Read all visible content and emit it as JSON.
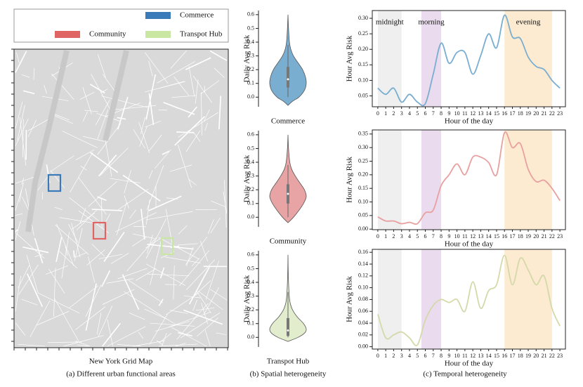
{
  "legend": {
    "items": [
      {
        "name": "Commerce",
        "color": "#3a7ab8"
      },
      {
        "name": "Community",
        "color": "#e06464"
      },
      {
        "name": "Transpot Hub",
        "color": "#c9e7a3"
      }
    ]
  },
  "map": {
    "title": "New York Grid Map",
    "caption": "(a) Different urban functional areas"
  },
  "captions": {
    "spatial": "(b) Spatial heterogeneity",
    "temporal": "(c) Temporal heterogeneity"
  },
  "chart_data": [
    {
      "type": "violin",
      "category": "Commerce",
      "ylabel": "Daily Avg Risk",
      "color": "#7aaed1",
      "ylim": [
        -0.07,
        0.63
      ],
      "yticks": [
        {
          "value": 0,
          "label": "0.0"
        },
        0.1,
        0.2,
        0.3,
        0.4,
        0.5,
        0.6
      ],
      "density": {
        "y": [
          -0.06,
          -0.03,
          0.0,
          0.05,
          0.1,
          0.15,
          0.2,
          0.25,
          0.3,
          0.35,
          0.4,
          0.5,
          0.6
        ],
        "width": [
          0,
          0.25,
          0.6,
          0.9,
          1.0,
          0.95,
          0.8,
          0.55,
          0.3,
          0.15,
          0.08,
          0.03,
          0
        ]
      },
      "box": [
        0.07,
        0.13,
        0.22
      ],
      "whisker": [
        0.0,
        0.38
      ]
    },
    {
      "type": "violin",
      "category": "Community",
      "ylabel": "Daily Avg Risk",
      "color": "#e8a4a4",
      "ylim": [
        -0.07,
        0.63
      ],
      "yticks": [
        {
          "value": 0,
          "label": "0.0"
        },
        0.1,
        0.2,
        0.3,
        0.4,
        0.5,
        0.6
      ],
      "density": {
        "y": [
          -0.04,
          0.0,
          0.05,
          0.1,
          0.15,
          0.2,
          0.25,
          0.3,
          0.35,
          0.4,
          0.5,
          0.6
        ],
        "width": [
          0,
          0.3,
          0.6,
          0.85,
          1.0,
          0.9,
          0.65,
          0.4,
          0.2,
          0.1,
          0.03,
          0
        ]
      },
      "box": [
        0.1,
        0.17,
        0.24
      ],
      "whisker": [
        0.0,
        0.38
      ]
    },
    {
      "type": "violin",
      "category": "Transpot Hub",
      "ylabel": "Daily Avg Risk",
      "color": "#e1edcd",
      "ylim": [
        -0.07,
        0.63
      ],
      "yticks": [
        {
          "value": 0,
          "label": "0.0"
        },
        0.1,
        0.2,
        0.3,
        0.4,
        0.5,
        0.6
      ],
      "density": {
        "y": [
          -0.03,
          0.0,
          0.03,
          0.06,
          0.1,
          0.15,
          0.2,
          0.25,
          0.3,
          0.4,
          0.5,
          0.6
        ],
        "width": [
          0,
          0.55,
          0.9,
          1.0,
          0.85,
          0.5,
          0.25,
          0.12,
          0.07,
          0.03,
          0.01,
          0
        ]
      },
      "box": [
        0.01,
        0.05,
        0.14
      ],
      "whisker": [
        0.0,
        0.33
      ]
    },
    {
      "type": "line",
      "xlabel": "Hour of the day",
      "ylabel": "Hour Avg Risk",
      "color": "#7aaed1",
      "x": [
        0,
        1,
        2,
        3,
        4,
        5,
        6,
        7,
        8,
        9,
        10,
        11,
        12,
        13,
        14,
        15,
        16,
        17,
        18,
        19,
        20,
        21,
        22,
        23
      ],
      "xticks": [
        0,
        1,
        2,
        3,
        4,
        5,
        6,
        7,
        8,
        9,
        10,
        11,
        12,
        13,
        14,
        15,
        16,
        17,
        18,
        19,
        20,
        21,
        22,
        23
      ],
      "xlim": [
        -0.7,
        23.7
      ],
      "values": [
        0.075,
        0.055,
        0.075,
        0.03,
        0.055,
        0.03,
        0.025,
        0.12,
        0.22,
        0.155,
        0.19,
        0.19,
        0.12,
        0.18,
        0.25,
        0.205,
        0.31,
        0.24,
        0.235,
        0.175,
        0.145,
        0.135,
        0.1,
        0.075
      ],
      "ylim": [
        0.015,
        0.325
      ],
      "yticks": [
        0.05,
        {
          "value": 0.1,
          "label": "0.10"
        },
        0.15,
        {
          "value": 0.2,
          "label": "0.20"
        },
        0.25,
        {
          "value": 0.3,
          "label": "0.30"
        }
      ],
      "spans": [
        {
          "start": 0,
          "end": 3,
          "label": "midnight",
          "color": "#efefef"
        },
        {
          "start": 5.5,
          "end": 8,
          "label": "morning",
          "color": "#eadcee"
        },
        {
          "start": 16,
          "end": 22,
          "label": "evening",
          "color": "#fcebd1"
        }
      ]
    },
    {
      "type": "line",
      "xlabel": "Hour of the day",
      "ylabel": "Hour Avg Risk",
      "color": "#e8a0a0",
      "x": [
        0,
        1,
        2,
        3,
        4,
        5,
        6,
        7,
        8,
        9,
        10,
        11,
        12,
        13,
        14,
        15,
        16,
        17,
        18,
        19,
        20,
        21,
        22,
        23
      ],
      "xticks": [
        0,
        1,
        2,
        3,
        4,
        5,
        6,
        7,
        8,
        9,
        10,
        11,
        12,
        13,
        14,
        15,
        16,
        17,
        18,
        19,
        20,
        21,
        22,
        23
      ],
      "xlim": [
        -0.7,
        23.7
      ],
      "values": [
        0.045,
        0.03,
        0.03,
        0.02,
        0.025,
        0.02,
        0.06,
        0.07,
        0.16,
        0.2,
        0.24,
        0.2,
        0.265,
        0.265,
        0.245,
        0.2,
        0.355,
        0.3,
        0.315,
        0.22,
        0.175,
        0.18,
        0.15,
        0.105
      ],
      "ylim": [
        -0.002,
        0.365
      ],
      "yticks": [
        {
          "value": 0,
          "label": "0.00"
        },
        0.05,
        {
          "value": 0.1,
          "label": "0.10"
        },
        0.15,
        {
          "value": 0.2,
          "label": "0.20"
        },
        0.25,
        {
          "value": 0.3,
          "label": "0.30"
        },
        0.35
      ],
      "spans": [
        {
          "start": 0,
          "end": 3,
          "color": "#efefef"
        },
        {
          "start": 5.5,
          "end": 8,
          "color": "#eadcee"
        },
        {
          "start": 16,
          "end": 22,
          "color": "#fcebd1"
        }
      ]
    },
    {
      "type": "line",
      "xlabel": "Hour of the day",
      "ylabel": "Hour Avg Risk",
      "color": "#d4d9a9",
      "x": [
        0,
        1,
        2,
        3,
        4,
        5,
        6,
        7,
        8,
        9,
        10,
        11,
        12,
        13,
        14,
        15,
        16,
        17,
        18,
        19,
        20,
        21,
        22,
        23
      ],
      "xticks": [
        0,
        1,
        2,
        3,
        4,
        5,
        6,
        7,
        8,
        9,
        10,
        11,
        12,
        13,
        14,
        15,
        16,
        17,
        18,
        19,
        20,
        21,
        22,
        23
      ],
      "xlim": [
        -0.7,
        23.7
      ],
      "values": [
        0.055,
        0.015,
        0.02,
        0.025,
        0.015,
        0.003,
        0.045,
        0.07,
        0.08,
        0.075,
        0.08,
        0.06,
        0.11,
        0.065,
        0.095,
        0.105,
        0.155,
        0.105,
        0.15,
        0.13,
        0.105,
        0.12,
        0.065,
        0.035
      ],
      "ylim": [
        -0.004,
        0.165
      ],
      "yticks": [
        {
          "value": 0,
          "label": "0.00"
        },
        0.02,
        0.04,
        0.06,
        0.08,
        {
          "value": 0.1,
          "label": "0.10"
        },
        0.12,
        0.14,
        0.16
      ],
      "spans": [
        {
          "start": 0,
          "end": 3,
          "color": "#efefef"
        },
        {
          "start": 5.5,
          "end": 8,
          "color": "#eadcee"
        },
        {
          "start": 16,
          "end": 22,
          "color": "#fcebd1"
        }
      ]
    }
  ]
}
